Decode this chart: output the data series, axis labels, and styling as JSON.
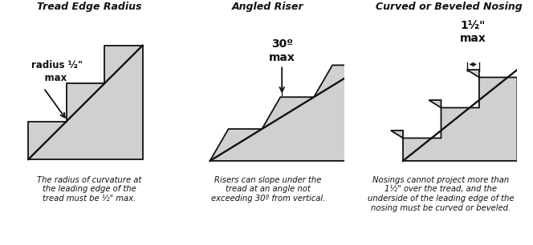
{
  "bg_color": "#ffffff",
  "fill_color": "#d0d0d0",
  "line_color": "#111111",
  "line_width": 1.3,
  "title1": "Tread Edge Radius",
  "title2": "Angled Riser",
  "title3": "Curved or Beveled Nosing",
  "caption1": "The radius of curvature at\nthe leading edge of the\ntread must be ½\" max.",
  "caption2": "Risers can slope under the\ntread at an angle not\nexceeding 30º from vertical.",
  "caption3": "Nosings cannot project more than\n1½\" over the tread, and the\nunderside of the leading edge of the\nnosing must be curved or beveled.",
  "label1": "radius ½\"\n    max",
  "label2": "30º\nmax",
  "label3": "1½\"\nmax",
  "title_fontsize": 9,
  "caption_fontsize": 7.2,
  "label_fontsize": 8.5
}
